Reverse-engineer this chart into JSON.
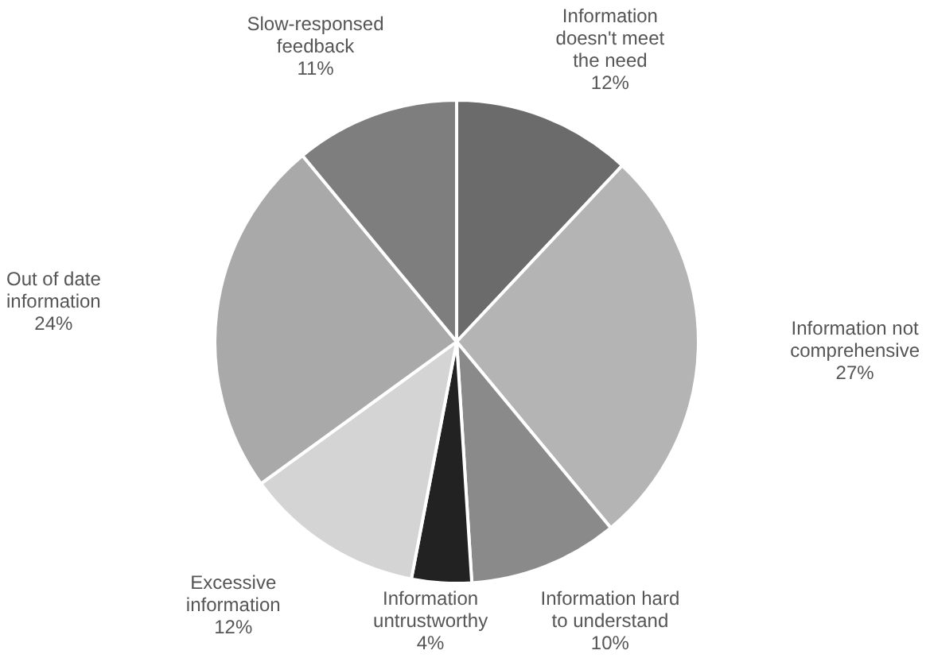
{
  "chart_data": {
    "type": "pie",
    "categories": [
      "Information doesn't meet the need",
      "Information not comprehensive",
      "Information hard to understand",
      "Information untrustworthy",
      "Excessive information",
      "Out of date information",
      "Slow-responsed feedback"
    ],
    "values": [
      12,
      27,
      10,
      4,
      12,
      24,
      11
    ],
    "value_labels": [
      "12%",
      "27%",
      "10%",
      "4%",
      "12%",
      "24%",
      "11%"
    ],
    "colors": [
      "#6b6b6b",
      "#b4b4b4",
      "#8a8a8a",
      "#222222",
      "#d4d4d4",
      "#a9a9a9",
      "#7e7e7e"
    ],
    "legend": false
  }
}
